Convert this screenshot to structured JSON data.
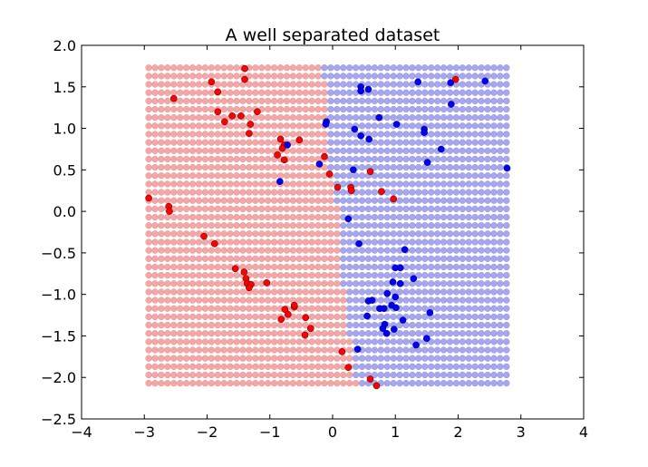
{
  "chart_data": {
    "type": "scatter",
    "title": "A well separated dataset",
    "xlabel": "",
    "ylabel": "",
    "xlim": [
      -4,
      4
    ],
    "ylim": [
      -2.5,
      2.0
    ],
    "x_ticks": [
      "−4",
      "−3",
      "−2",
      "−1",
      "0",
      "1",
      "2",
      "3",
      "4"
    ],
    "x_tick_values": [
      -4,
      -3,
      -2,
      -1,
      0,
      1,
      2,
      3,
      4
    ],
    "y_ticks": [
      "2.0",
      "1.5",
      "1.0",
      "0.5",
      "0.0",
      "−0.5",
      "−1.0",
      "−1.5",
      "−2.0",
      "−2.5"
    ],
    "y_tick_values": [
      2.0,
      1.5,
      1.0,
      0.5,
      0.0,
      -0.5,
      -1.0,
      -1.5,
      -2.0,
      -2.5
    ],
    "grid": false,
    "legend": "none",
    "decision_grid": {
      "x_range": [
        -2.93,
        2.77
      ],
      "y_range": [
        -2.12,
        1.73
      ],
      "boundary": [
        {
          "y": 1.73,
          "x": -0.18
        },
        {
          "y": 1.5,
          "x": -0.12
        },
        {
          "y": 1.2,
          "x": -0.1
        },
        {
          "y": 0.9,
          "x": -0.1
        },
        {
          "y": 0.5,
          "x": -0.05
        },
        {
          "y": 0.2,
          "x": 0.05
        },
        {
          "y": -0.2,
          "x": 0.1
        },
        {
          "y": -0.6,
          "x": 0.13
        },
        {
          "y": -1.1,
          "x": 0.2
        },
        {
          "y": -1.5,
          "x": 0.27
        },
        {
          "y": -2.12,
          "x": 0.38
        }
      ],
      "colors": {
        "red_region": "#f4a7a7",
        "blue_region": "#a7a7f0"
      }
    },
    "series": [
      {
        "color": "#ff0000",
        "points": [
          [
            -1.4,
            1.72
          ],
          [
            -1.4,
            1.59
          ],
          [
            -1.93,
            1.56
          ],
          [
            -1.83,
            1.44
          ],
          [
            -2.53,
            1.36
          ],
          [
            -1.83,
            1.2
          ],
          [
            -1.46,
            1.15
          ],
          [
            -1.6,
            1.15
          ],
          [
            -1.2,
            1.2
          ],
          [
            -1.72,
            1.08
          ],
          [
            -1.31,
            1.05
          ],
          [
            -1.33,
            0.94
          ],
          [
            -0.83,
            0.87
          ],
          [
            -0.53,
            0.86
          ],
          [
            -0.77,
            0.8
          ],
          [
            -0.8,
            0.76
          ],
          [
            -0.88,
            0.68
          ],
          [
            -0.77,
            0.62
          ],
          [
            -0.13,
            0.66
          ],
          [
            -0.05,
            0.45
          ],
          [
            0.08,
            0.29
          ],
          [
            0.29,
            0.29
          ],
          [
            0.3,
            0.25
          ],
          [
            0.6,
            0.48
          ],
          [
            0.78,
            0.24
          ],
          [
            0.97,
            0.15
          ],
          [
            1.96,
            1.59
          ],
          [
            -2.93,
            0.16
          ],
          [
            -2.61,
            0.06
          ],
          [
            -2.6,
            0.0
          ],
          [
            -2.05,
            -0.3
          ],
          [
            -1.88,
            -0.39
          ],
          [
            -1.55,
            -0.69
          ],
          [
            -1.41,
            -0.73
          ],
          [
            -1.38,
            -0.81
          ],
          [
            -1.36,
            -0.87
          ],
          [
            -1.3,
            -0.88
          ],
          [
            -1.33,
            -0.92
          ],
          [
            -1.05,
            -0.86
          ],
          [
            -0.76,
            -1.18
          ],
          [
            -0.71,
            -1.24
          ],
          [
            -0.61,
            -1.15
          ],
          [
            -0.61,
            -1.13
          ],
          [
            -0.82,
            -1.3
          ],
          [
            -0.43,
            -1.28
          ],
          [
            -0.35,
            -1.41
          ],
          [
            -0.44,
            -1.49
          ],
          [
            0.15,
            -1.69
          ],
          [
            0.25,
            -1.88
          ],
          [
            0.6,
            -2.02
          ],
          [
            0.7,
            -2.1
          ]
        ]
      },
      {
        "color": "#0000ff",
        "points": [
          [
            0.45,
            1.5
          ],
          [
            0.45,
            1.45
          ],
          [
            0.57,
            1.47
          ],
          [
            1.36,
            1.56
          ],
          [
            1.88,
            1.55
          ],
          [
            2.43,
            1.57
          ],
          [
            1.89,
            1.29
          ],
          [
            -0.1,
            1.08
          ],
          [
            -0.11,
            1.05
          ],
          [
            0.35,
            0.99
          ],
          [
            0.45,
            0.91
          ],
          [
            0.58,
            0.87
          ],
          [
            0.74,
            1.13
          ],
          [
            1.02,
            1.05
          ],
          [
            1.46,
            0.99
          ],
          [
            1.46,
            0.95
          ],
          [
            1.73,
            0.75
          ],
          [
            1.51,
            0.59
          ],
          [
            2.78,
            0.52
          ],
          [
            -0.72,
            0.8
          ],
          [
            -0.21,
            0.57
          ],
          [
            0.33,
            0.5
          ],
          [
            -0.84,
            0.36
          ],
          [
            0.25,
            -0.09
          ],
          [
            0.42,
            -0.39
          ],
          [
            1.15,
            -0.46
          ],
          [
            1.0,
            -0.68
          ],
          [
            1.08,
            -0.68
          ],
          [
            0.96,
            -0.85
          ],
          [
            1.08,
            -0.87
          ],
          [
            1.29,
            -0.81
          ],
          [
            0.87,
            -0.99
          ],
          [
            1.0,
            -1.03
          ],
          [
            0.57,
            -1.08
          ],
          [
            0.63,
            -1.07
          ],
          [
            0.75,
            -1.17
          ],
          [
            0.82,
            -1.17
          ],
          [
            0.94,
            -1.13
          ],
          [
            1.01,
            -1.16
          ],
          [
            0.55,
            -1.26
          ],
          [
            1.12,
            -1.31
          ],
          [
            1.55,
            -1.22
          ],
          [
            0.83,
            -1.36
          ],
          [
            0.8,
            -1.41
          ],
          [
            0.98,
            -1.42
          ],
          [
            0.86,
            -1.47
          ],
          [
            1.5,
            -1.53
          ],
          [
            1.33,
            -1.61
          ],
          [
            0.4,
            -1.66
          ]
        ]
      }
    ]
  }
}
